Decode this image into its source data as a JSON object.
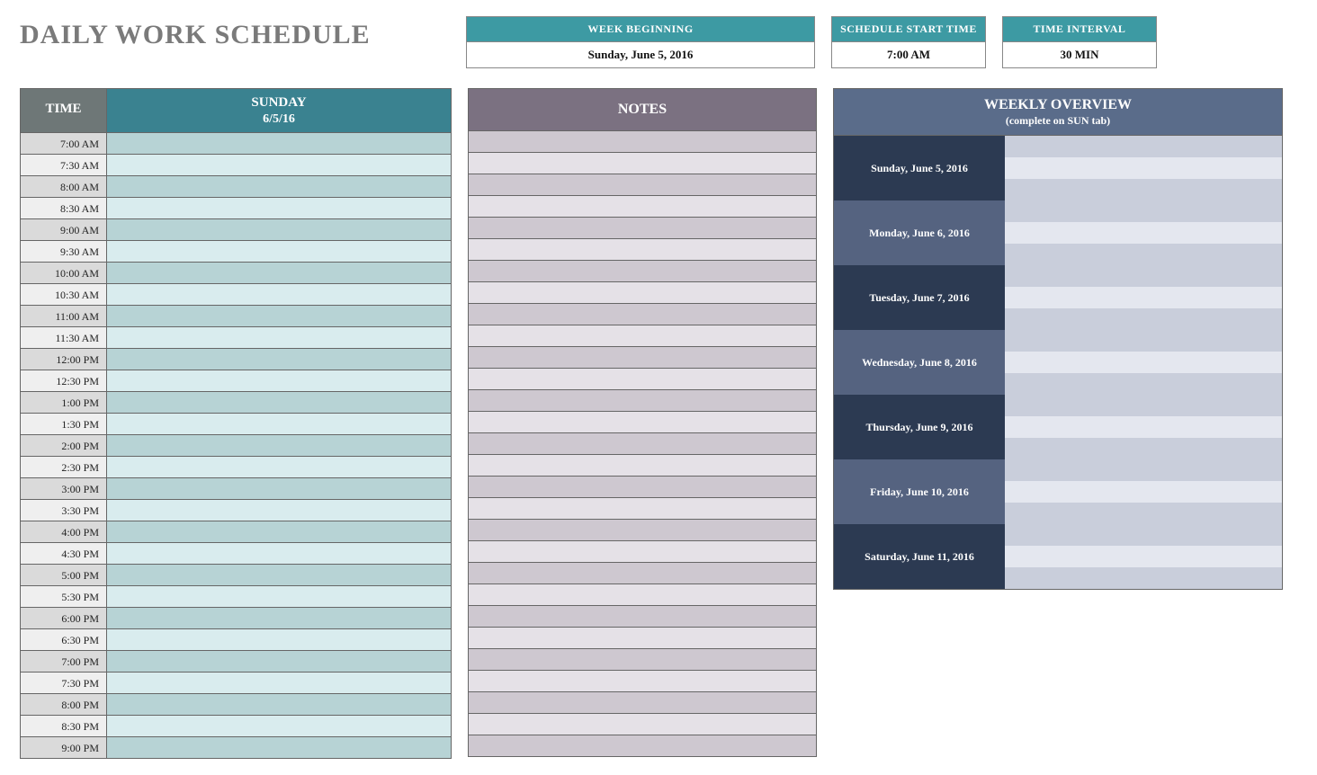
{
  "title": "DAILY WORK SCHEDULE",
  "info": {
    "week_beginning": {
      "label": "WEEK BEGINNING",
      "value": "Sunday, June 5, 2016"
    },
    "start_time": {
      "label": "SCHEDULE START TIME",
      "value": "7:00 AM"
    },
    "interval": {
      "label": "TIME INTERVAL",
      "value": "30 MIN"
    }
  },
  "schedule": {
    "time_header": "TIME",
    "day_header_line1": "SUNDAY",
    "day_header_line2": "6/5/16",
    "time_col_bg_even": "#dadada",
    "time_col_bg_odd": "#efefef",
    "slot_bg_even": "#b7d3d5",
    "slot_bg_odd": "#d9ecee",
    "times": [
      "7:00 AM",
      "7:30 AM",
      "8:00 AM",
      "8:30 AM",
      "9:00 AM",
      "9:30 AM",
      "10:00 AM",
      "10:30 AM",
      "11:00 AM",
      "11:30 AM",
      "12:00 PM",
      "12:30 PM",
      "1:00 PM",
      "1:30 PM",
      "2:00 PM",
      "2:30 PM",
      "3:00 PM",
      "3:30 PM",
      "4:00 PM",
      "4:30 PM",
      "5:00 PM",
      "5:30 PM",
      "6:00 PM",
      "6:30 PM",
      "7:00 PM",
      "7:30 PM",
      "8:00 PM",
      "8:30 PM",
      "9:00 PM"
    ]
  },
  "notes": {
    "header": "NOTES",
    "row_bg_even": "#cec8d0",
    "row_bg_odd": "#e5e1e7",
    "row_count": 29
  },
  "overview": {
    "header_line1": "WEEKLY OVERVIEW",
    "header_line2": "(complete on SUN tab)",
    "day_bg_even": "#2c3a52",
    "day_bg_odd": "#556380",
    "cell_bg_even": "#c9cedb",
    "cell_bg_odd": "#e4e7ef",
    "days": [
      "Sunday, June 5, 2016",
      "Monday, June 6, 2016",
      "Tuesday, June 7, 2016",
      "Wednesday, June 8, 2016",
      "Thursday, June 9, 2016",
      "Friday, June 10, 2016",
      "Saturday, June 11, 2016"
    ]
  },
  "colors": {
    "title_text": "#7a7a7a",
    "info_header_bg": "#3d9aa3",
    "sched_time_header_bg": "#6e7777",
    "sched_day_header_bg": "#3a8290",
    "notes_header_bg": "#7b7181",
    "overview_header_bg": "#5a6c8a",
    "border": "#666666"
  }
}
